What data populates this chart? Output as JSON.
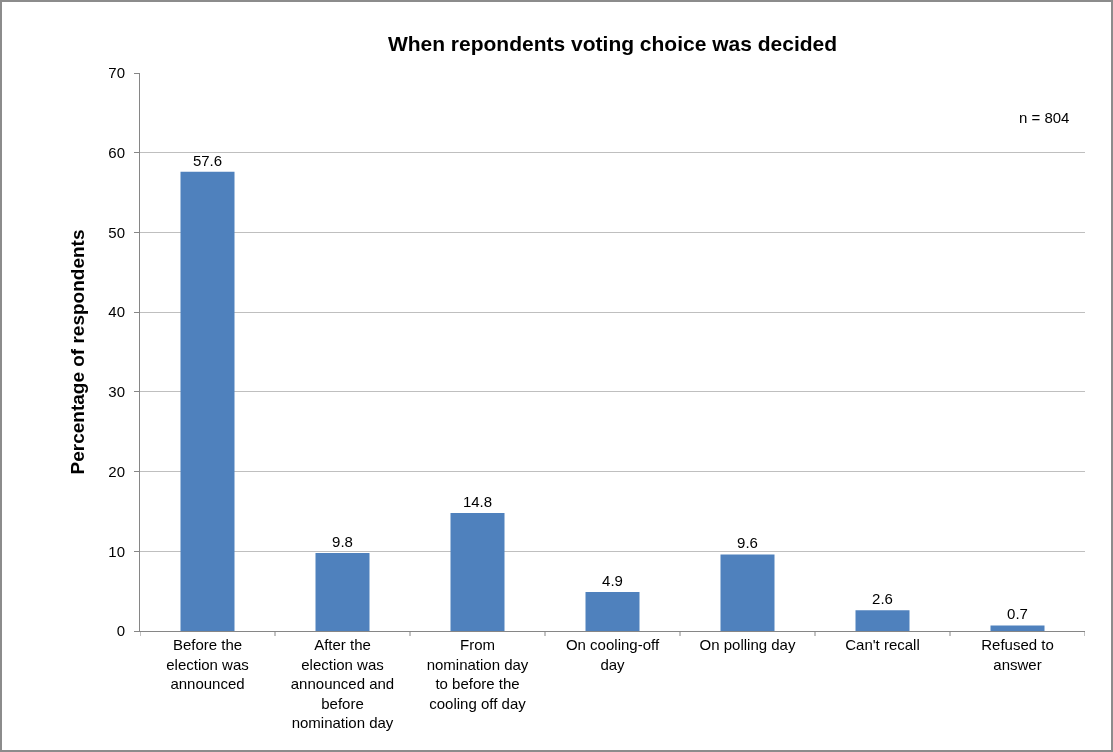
{
  "chart_data": {
    "type": "bar",
    "title": "When repondents voting choice was decided",
    "ylabel": "Percentage of respondents",
    "categories": [
      "Before the election was announced",
      "After the election was announced and before nomination day",
      "From nomination day to before the cooling off day",
      "On cooling-off day",
      "On polling day",
      "Can't recall",
      "Refused to answer"
    ],
    "values": [
      57.6,
      9.8,
      14.8,
      4.9,
      9.6,
      2.6,
      0.7
    ],
    "color": "#4f81bd",
    "ylim": [
      0,
      70
    ],
    "yticks": [
      0,
      10,
      20,
      30,
      40,
      50,
      60,
      70
    ],
    "grid": "y",
    "data_labels": true,
    "annotations": [
      "n = 804"
    ]
  }
}
